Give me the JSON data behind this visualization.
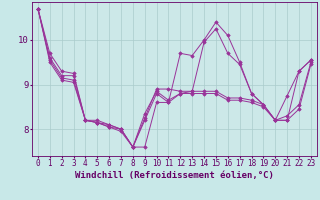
{
  "xlabel": "Windchill (Refroidissement éolien,°C)",
  "x": [
    0,
    1,
    2,
    3,
    4,
    5,
    6,
    7,
    8,
    9,
    10,
    11,
    12,
    13,
    14,
    15,
    16,
    17,
    18,
    19,
    20,
    21,
    22,
    23
  ],
  "series": [
    [
      10.7,
      9.7,
      9.3,
      9.25,
      8.2,
      8.2,
      8.1,
      8.0,
      7.6,
      7.6,
      8.6,
      8.6,
      9.7,
      9.65,
      10.0,
      10.4,
      10.1,
      9.5,
      8.8,
      8.55,
      8.2,
      8.2,
      9.3,
      9.55
    ],
    [
      10.7,
      9.6,
      9.2,
      9.2,
      8.2,
      8.15,
      8.05,
      8.0,
      7.6,
      8.25,
      8.9,
      8.9,
      8.85,
      8.85,
      9.95,
      10.25,
      9.7,
      9.45,
      8.8,
      8.55,
      8.2,
      8.75,
      9.3,
      9.55
    ],
    [
      10.7,
      9.55,
      9.15,
      9.1,
      8.2,
      8.15,
      8.1,
      8.0,
      7.6,
      8.35,
      8.85,
      8.65,
      8.8,
      8.85,
      8.85,
      8.85,
      8.7,
      8.7,
      8.65,
      8.55,
      8.2,
      8.3,
      8.55,
      9.5
    ],
    [
      10.7,
      9.5,
      9.1,
      9.05,
      8.2,
      8.15,
      8.05,
      7.95,
      7.6,
      8.2,
      8.8,
      8.6,
      8.8,
      8.8,
      8.8,
      8.8,
      8.65,
      8.65,
      8.6,
      8.5,
      8.2,
      8.2,
      8.45,
      9.45
    ]
  ],
  "line_color": "#993399",
  "marker": "D",
  "marker_size": 2,
  "bg_color": "#c8e8e8",
  "plot_bg_color": "#cce8e8",
  "grid_color": "#aacccc",
  "axis_color": "#660066",
  "text_color": "#660066",
  "ylim": [
    7.4,
    10.85
  ],
  "xlim": [
    -0.5,
    23.5
  ],
  "yticks": [
    8,
    9,
    10
  ],
  "xticks": [
    0,
    1,
    2,
    3,
    4,
    5,
    6,
    7,
    8,
    9,
    10,
    11,
    12,
    13,
    14,
    15,
    16,
    17,
    18,
    19,
    20,
    21,
    22,
    23
  ],
  "tick_fontsize": 5.5,
  "xlabel_fontsize": 6.5
}
